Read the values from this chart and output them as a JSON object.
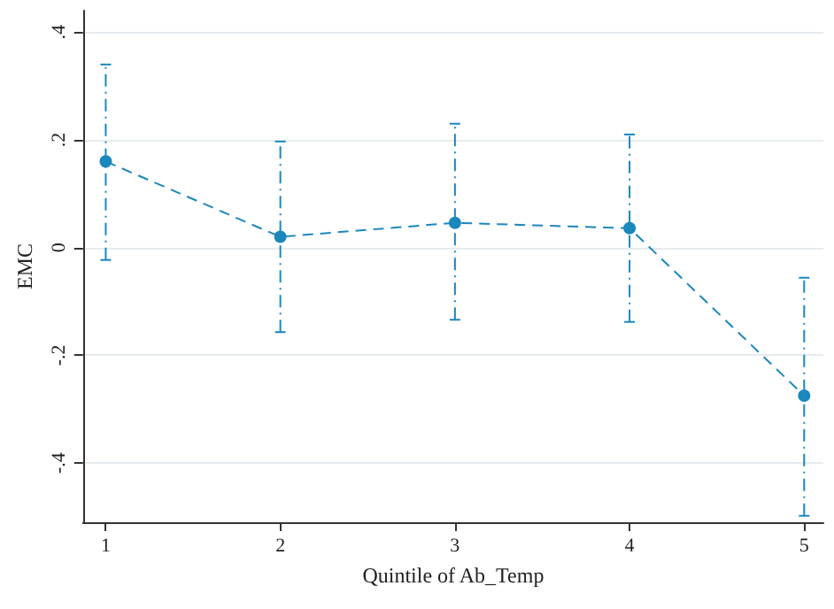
{
  "chart_data": {
    "type": "line",
    "xlabel": "Quintile of Ab_Temp",
    "ylabel": "EMC",
    "x": [
      1,
      2,
      3,
      4,
      5
    ],
    "series": [
      {
        "color": "#1a87bd",
        "values": [
          0.16,
          0.02,
          0.046,
          0.036,
          -0.275
        ],
        "errors": [
          [
            -0.023,
            0.34
          ],
          [
            -0.157,
            0.197
          ],
          [
            -0.134,
            0.23
          ],
          [
            -0.138,
            0.21
          ],
          [
            -0.498,
            -0.056
          ]
        ]
      }
    ],
    "xlim": [
      0.87,
      5.11
    ],
    "xticks": [
      1,
      2,
      3,
      4,
      5
    ],
    "ylim": [
      -0.51,
      0.44
    ],
    "yticks": [
      {
        "value": -0.4,
        "label": "-.4"
      },
      {
        "value": -0.2,
        "label": "-.2"
      },
      {
        "value": 0,
        "label": "0"
      },
      {
        "value": 0.2,
        "label": ".2"
      },
      {
        "value": 0.4,
        "label": ".4"
      }
    ],
    "grid": "y",
    "marker": "circle",
    "line_style": "dashed"
  }
}
